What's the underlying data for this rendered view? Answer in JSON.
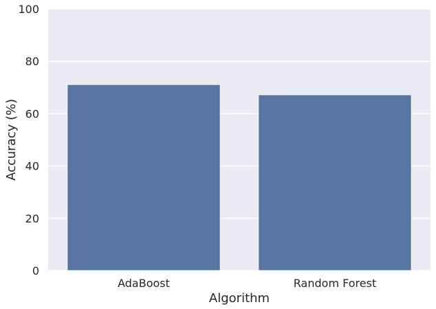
{
  "chart_data": {
    "type": "bar",
    "categories": [
      "AdaBoost",
      "Random Forest"
    ],
    "values": [
      71.1,
      67.2
    ],
    "xlabel": "Algorithm",
    "ylabel": "Accuracy (%)",
    "ylim": [
      0,
      100
    ],
    "yticks": [
      0,
      20,
      40,
      60,
      80,
      100
    ],
    "grid": true,
    "colors": {
      "plot_background": "#eaeaf2",
      "grid": "#ffffff",
      "bar": "#5975a4",
      "text": "#262626"
    }
  }
}
